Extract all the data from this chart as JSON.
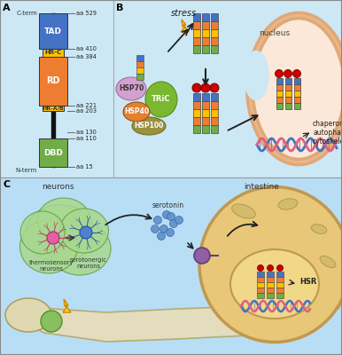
{
  "colors": {
    "TAD": "#4472c4",
    "HR_C": "#ffc000",
    "RD": "#ed7d31",
    "HR_AB": "#ffc000",
    "DBD": "#70ad47",
    "HSP70": "#d4a0d0",
    "HSP40": "#e08030",
    "HSP100": "#9b9040",
    "TRiC": "#80b040",
    "blue_seg": "#4472c4",
    "orange_seg": "#ed7d31",
    "yellow_seg": "#ffc000",
    "green_seg": "#70ad47",
    "red_dot": "#cc0000",
    "nucleus_fill": "#f5d5b8",
    "nucleus_border": "#e0a070",
    "dna_blue": "#4472c4",
    "dna_pink": "#e06080",
    "intestine_bg": "#e8c878",
    "intestine_border": "#c09050",
    "neuron_blob": "#a8d890",
    "neuron_blob_border": "#60a040",
    "worm_fill": "#e8ddb0",
    "worm_border": "#b0a060",
    "serotonin_dot": "#6090cc",
    "receptor_purple": "#9060a0",
    "lightning_yellow": "#ffd700",
    "lightning_border": "#cc8800",
    "tsn_color": "#e060a0",
    "sern_color": "#5080d0",
    "panel_top_bg": "#cce8f5",
    "panel_bot_bg": "#b8def5",
    "connector_black": "#111111"
  },
  "labels": {
    "A": "A",
    "B": "B",
    "C": "C",
    "C_term": "C-term",
    "N_term": "N-term",
    "aa529": "aa 529",
    "aa410": "aa 410",
    "aa384": "aa 384",
    "aa221": "aa 221",
    "aa203": "aa 203",
    "aa130": "aa 130",
    "aa110": "aa 110",
    "aa15": "aa 15",
    "TAD": "TAD",
    "HR_C": "HR-C",
    "RD": "RD",
    "HR_AB": "HR-A/B",
    "DBD": "DBD",
    "HSP70": "HSP70",
    "HSP40": "HSP40",
    "HSP100": "HSP100",
    "TRiC": "TRiC",
    "stress": "stress",
    "nucleus": "nucleus",
    "chaperones": "chaperones",
    "autophagy": "autophagy",
    "cytoskeleton": "cytoskeleton",
    "neurons": "neurons",
    "intestine": "intestine",
    "thermosensory": "thermosensory\nneurons",
    "serotonergic": "serotonergic\nneurons",
    "serotonin": "serotonin",
    "HSR": "HSR"
  }
}
